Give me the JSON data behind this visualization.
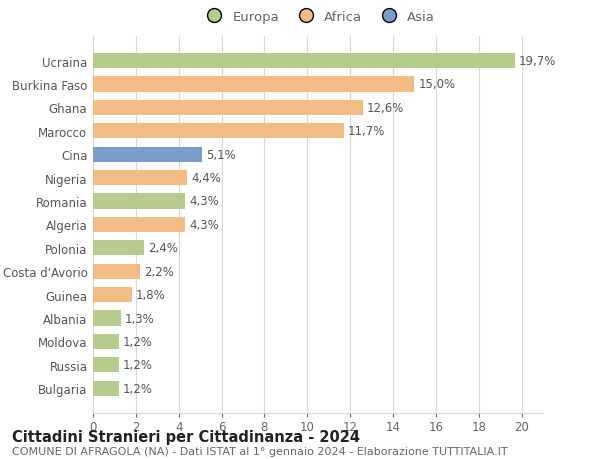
{
  "categories": [
    "Bulgaria",
    "Russia",
    "Moldova",
    "Albania",
    "Guinea",
    "Costa d'Avorio",
    "Polonia",
    "Algeria",
    "Romania",
    "Nigeria",
    "Cina",
    "Marocco",
    "Ghana",
    "Burkina Faso",
    "Ucraina"
  ],
  "values": [
    1.2,
    1.2,
    1.2,
    1.3,
    1.8,
    2.2,
    2.4,
    4.3,
    4.3,
    4.4,
    5.1,
    11.7,
    12.6,
    15.0,
    19.7
  ],
  "labels": [
    "1,2%",
    "1,2%",
    "1,2%",
    "1,3%",
    "1,8%",
    "2,2%",
    "2,4%",
    "4,3%",
    "4,3%",
    "4,4%",
    "5,1%",
    "11,7%",
    "12,6%",
    "15,0%",
    "19,7%"
  ],
  "continent": [
    "Europa",
    "Europa",
    "Europa",
    "Europa",
    "Africa",
    "Africa",
    "Europa",
    "Africa",
    "Europa",
    "Africa",
    "Asia",
    "Africa",
    "Africa",
    "Africa",
    "Europa"
  ],
  "colors": {
    "Europa": "#b5cc8e",
    "Africa": "#f2bc84",
    "Asia": "#7b9ec9"
  },
  "title": "Cittadini Stranieri per Cittadinanza - 2024",
  "subtitle": "COMUNE DI AFRAGOLA (NA) - Dati ISTAT al 1° gennaio 2024 - Elaborazione TUTTITALIA.IT",
  "xlim": [
    0,
    21
  ],
  "xticks": [
    0,
    2,
    4,
    6,
    8,
    10,
    12,
    14,
    16,
    18,
    20
  ],
  "grid_color": "#d8d8d8",
  "background_color": "#ffffff",
  "bar_height": 0.65,
  "label_fontsize": 8.5,
  "title_fontsize": 10.5,
  "subtitle_fontsize": 8,
  "ytick_fontsize": 8.5,
  "xtick_fontsize": 8.5,
  "legend_fontsize": 9.5
}
